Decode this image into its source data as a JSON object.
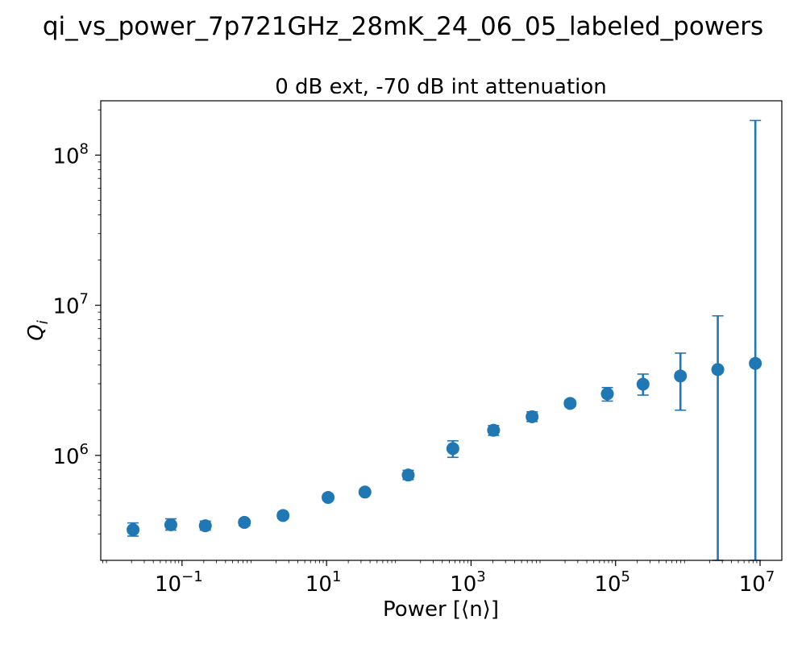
{
  "figure": {
    "suptitle": "qi_vs_power_7p721GHz_28mK_24_06_05_labeled_powers"
  },
  "chart_data": {
    "type": "scatter",
    "title": "0 dB ext, -70 dB int attenuation",
    "xlabel": "Power [⟨n⟩]",
    "ylabel": "Q_i",
    "ylabel_main": "Q",
    "ylabel_sub": "i",
    "xscale": "log",
    "yscale": "log",
    "xlim": [
      0.0075,
      20000000
    ],
    "ylim": [
      200000,
      230000000
    ],
    "grid": false,
    "marker_color": "#1f77b4",
    "x_ticks": [
      {
        "value": 0.1,
        "base": "10",
        "exp": "−1"
      },
      {
        "value": 10,
        "base": "10",
        "exp": "1"
      },
      {
        "value": 1000,
        "base": "10",
        "exp": "3"
      },
      {
        "value": 100000,
        "base": "10",
        "exp": "5"
      },
      {
        "value": 10000000,
        "base": "10",
        "exp": "7"
      }
    ],
    "y_ticks": [
      {
        "value": 1000000,
        "base": "10",
        "exp": "6"
      },
      {
        "value": 10000000,
        "base": "10",
        "exp": "7"
      },
      {
        "value": 100000000,
        "base": "10",
        "exp": "8"
      }
    ],
    "points": [
      {
        "x": 0.021,
        "y": 320000,
        "yerr_low": 290000,
        "yerr_high": 355000
      },
      {
        "x": 0.07,
        "y": 345000,
        "yerr_low": 318000,
        "yerr_high": 378000
      },
      {
        "x": 0.21,
        "y": 340000,
        "yerr_low": 318000,
        "yerr_high": 365000
      },
      {
        "x": 0.73,
        "y": 358000,
        "yerr_low": 340000,
        "yerr_high": 375000
      },
      {
        "x": 2.5,
        "y": 398000,
        "yerr_low": 380000,
        "yerr_high": 415000
      },
      {
        "x": 10.5,
        "y": 525000,
        "yerr_low": 515000,
        "yerr_high": 540000
      },
      {
        "x": 34,
        "y": 570000,
        "yerr_low": 555000,
        "yerr_high": 585000
      },
      {
        "x": 135,
        "y": 740000,
        "yerr_low": 690000,
        "yerr_high": 795000
      },
      {
        "x": 560,
        "y": 1110000,
        "yerr_low": 970000,
        "yerr_high": 1250000
      },
      {
        "x": 2050,
        "y": 1470000,
        "yerr_low": 1360000,
        "yerr_high": 1580000
      },
      {
        "x": 7000,
        "y": 1810000,
        "yerr_low": 1680000,
        "yerr_high": 1950000
      },
      {
        "x": 23500,
        "y": 2220000,
        "yerr_low": 2120000,
        "yerr_high": 2330000
      },
      {
        "x": 77000,
        "y": 2570000,
        "yerr_low": 2300000,
        "yerr_high": 2830000
      },
      {
        "x": 240000,
        "y": 2980000,
        "yerr_low": 2520000,
        "yerr_high": 3480000
      },
      {
        "x": 790000,
        "y": 3380000,
        "yerr_low": 2000000,
        "yerr_high": 4800000
      },
      {
        "x": 2600000,
        "y": 3730000,
        "yerr_low": 200000,
        "yerr_high": 8500000
      },
      {
        "x": 8600000,
        "y": 4100000,
        "yerr_low": 200000,
        "yerr_high": 170000000
      }
    ]
  }
}
